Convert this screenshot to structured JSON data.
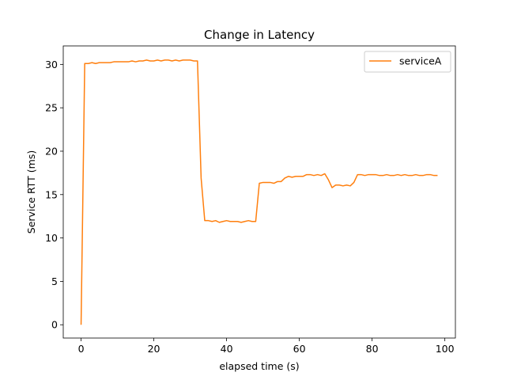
{
  "chart_data": {
    "type": "line",
    "title": "Change in Latency",
    "xlabel": "elapsed time (s)",
    "ylabel": "Service RTT (ms)",
    "xlim": [
      -4.9,
      102.9
    ],
    "ylim": [
      -1.53,
      32.13
    ],
    "xticks": [
      0,
      20,
      40,
      60,
      80,
      100
    ],
    "yticks": [
      0,
      5,
      10,
      15,
      20,
      25,
      30
    ],
    "grid": false,
    "legend_position": "upper right",
    "series": [
      {
        "name": "serviceA",
        "color": "#ff7f0e",
        "x": [
          0,
          1,
          2,
          3,
          4,
          5,
          6,
          7,
          8,
          9,
          10,
          11,
          12,
          13,
          14,
          15,
          16,
          17,
          18,
          19,
          20,
          21,
          22,
          23,
          24,
          25,
          26,
          27,
          28,
          29,
          30,
          31,
          32,
          33,
          34,
          35,
          36,
          37,
          38,
          39,
          40,
          41,
          42,
          43,
          44,
          45,
          46,
          47,
          48,
          49,
          50,
          51,
          52,
          53,
          54,
          55,
          56,
          57,
          58,
          59,
          60,
          61,
          62,
          63,
          64,
          65,
          66,
          67,
          68,
          69,
          70,
          71,
          72,
          73,
          74,
          75,
          76,
          77,
          78,
          79,
          80,
          81,
          82,
          83,
          84,
          85,
          86,
          87,
          88,
          89,
          90,
          91,
          92,
          93,
          94,
          95,
          96,
          97,
          98
        ],
        "y": [
          0.0,
          30.1,
          30.1,
          30.2,
          30.1,
          30.2,
          30.2,
          30.2,
          30.2,
          30.3,
          30.3,
          30.3,
          30.3,
          30.3,
          30.4,
          30.3,
          30.4,
          30.4,
          30.5,
          30.4,
          30.4,
          30.5,
          30.4,
          30.5,
          30.5,
          30.4,
          30.5,
          30.4,
          30.5,
          30.5,
          30.5,
          30.4,
          30.4,
          16.9,
          12.0,
          12.0,
          11.9,
          12.0,
          11.8,
          11.9,
          12.0,
          11.9,
          11.9,
          11.9,
          11.8,
          11.9,
          12.0,
          11.9,
          11.9,
          16.3,
          16.4,
          16.4,
          16.4,
          16.3,
          16.5,
          16.5,
          16.9,
          17.1,
          17.0,
          17.1,
          17.1,
          17.1,
          17.3,
          17.3,
          17.2,
          17.3,
          17.2,
          17.4,
          16.7,
          15.8,
          16.1,
          16.1,
          16.0,
          16.1,
          16.0,
          16.4,
          17.3,
          17.3,
          17.2,
          17.3,
          17.3,
          17.3,
          17.2,
          17.2,
          17.3,
          17.2,
          17.2,
          17.3,
          17.2,
          17.3,
          17.2,
          17.2,
          17.3,
          17.2,
          17.2,
          17.3,
          17.3,
          17.2,
          17.2
        ]
      }
    ]
  }
}
